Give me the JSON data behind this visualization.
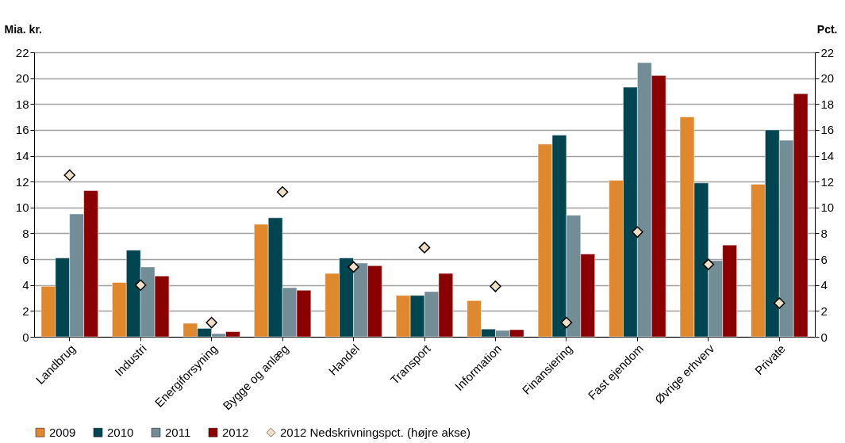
{
  "chart_data": {
    "type": "bar",
    "ylabel": "Mia. kr.",
    "y2label": "Pct.",
    "categories": [
      "Landbrug",
      "Industri",
      "Energiforsyning",
      "Bygge og anlæg",
      "Handel",
      "Transport",
      "Information",
      "Finansiering",
      "Fast ejendom",
      "Øvrige erhverv",
      "Private"
    ],
    "series": [
      {
        "name": "2009",
        "color": "#e0882e",
        "values": [
          3.9,
          4.2,
          1.05,
          8.7,
          4.9,
          3.2,
          2.8,
          14.9,
          12.1,
          17.0,
          11.8
        ]
      },
      {
        "name": "2010",
        "color": "#004550",
        "values": [
          6.1,
          6.7,
          0.65,
          9.2,
          6.1,
          3.2,
          0.6,
          15.6,
          19.3,
          11.9,
          16.0
        ]
      },
      {
        "name": "2011",
        "color": "#738d97",
        "values": [
          9.5,
          5.4,
          0.25,
          3.8,
          5.7,
          3.5,
          0.5,
          9.4,
          21.2,
          5.9,
          15.2
        ]
      },
      {
        "name": "2012",
        "color": "#8b0000",
        "values": [
          11.3,
          4.7,
          0.4,
          3.6,
          5.5,
          4.9,
          0.55,
          6.4,
          20.2,
          7.1,
          18.8
        ]
      },
      {
        "name": "2012 Nedskrivningspct. (højre akse)",
        "color": "#f0e0c8",
        "type": "scatter",
        "axis": "y2",
        "marker": "diamond",
        "values": [
          12.5,
          4.0,
          1.1,
          11.2,
          5.4,
          6.9,
          3.9,
          1.1,
          8.1,
          5.6,
          2.6
        ]
      }
    ],
    "ylim": [
      0,
      22
    ],
    "yticks": [
      0,
      2,
      4,
      6,
      8,
      10,
      12,
      14,
      16,
      18,
      20,
      22
    ],
    "y2lim": [
      0,
      22
    ],
    "y2ticks": [
      0,
      2,
      4,
      6,
      8,
      10,
      12,
      14,
      16,
      18,
      20,
      22
    ],
    "grid": "y",
    "legend": "bottom"
  }
}
